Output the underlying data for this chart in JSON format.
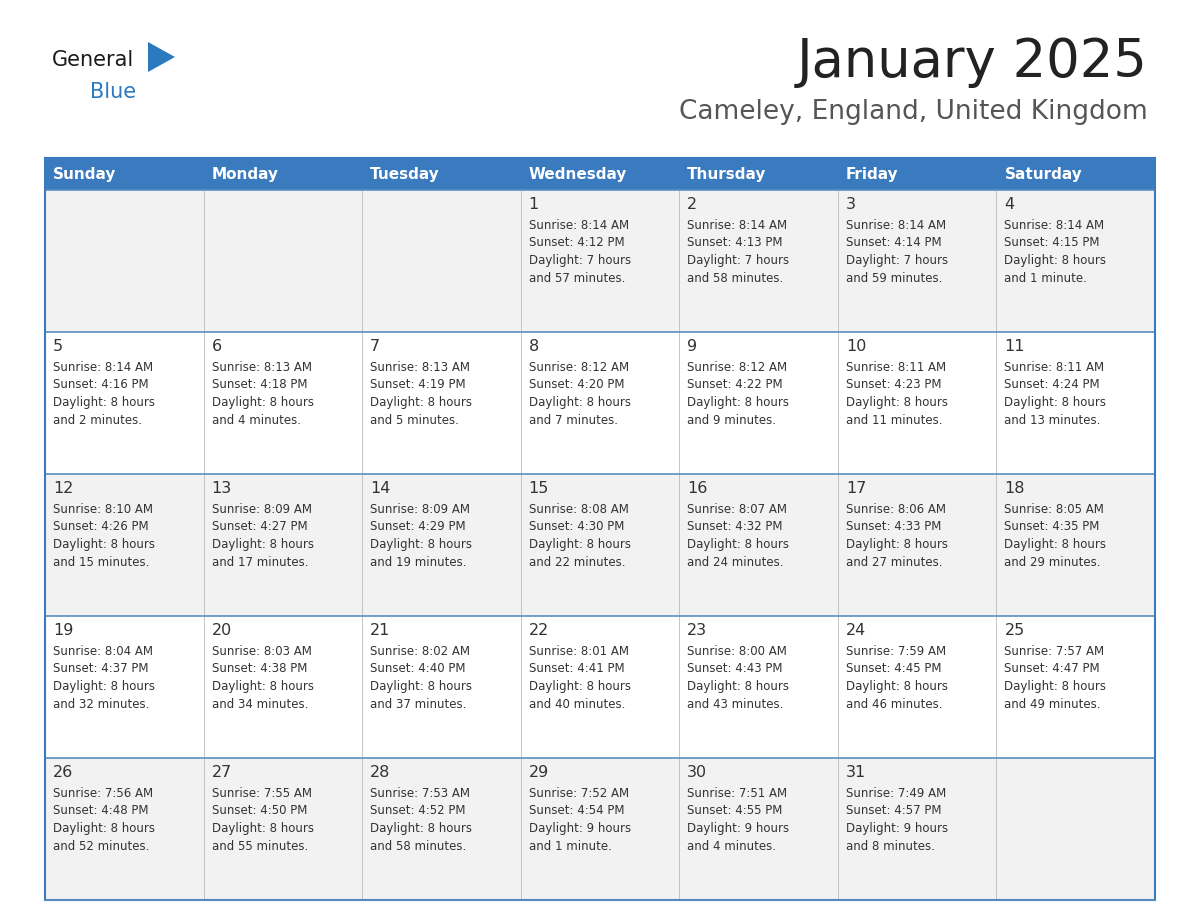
{
  "title": "January 2025",
  "subtitle": "Cameley, England, United Kingdom",
  "days_of_week": [
    "Sunday",
    "Monday",
    "Tuesday",
    "Wednesday",
    "Thursday",
    "Friday",
    "Saturday"
  ],
  "header_bg": "#3a7abf",
  "header_text": "#ffffff",
  "row_bg_even": "#f2f2f2",
  "row_bg_odd": "#ffffff",
  "cell_text": "#333333",
  "day_num_color": "#333333",
  "border_color": "#3a7abf",
  "row_border_color": "#5a8fc0",
  "title_color": "#222222",
  "subtitle_color": "#555555",
  "logo_general_color": "#1a1a1a",
  "logo_blue_color": "#2a7abf",
  "weeks": [
    [
      {
        "day": null,
        "info": ""
      },
      {
        "day": null,
        "info": ""
      },
      {
        "day": null,
        "info": ""
      },
      {
        "day": 1,
        "info": "Sunrise: 8:14 AM\nSunset: 4:12 PM\nDaylight: 7 hours\nand 57 minutes."
      },
      {
        "day": 2,
        "info": "Sunrise: 8:14 AM\nSunset: 4:13 PM\nDaylight: 7 hours\nand 58 minutes."
      },
      {
        "day": 3,
        "info": "Sunrise: 8:14 AM\nSunset: 4:14 PM\nDaylight: 7 hours\nand 59 minutes."
      },
      {
        "day": 4,
        "info": "Sunrise: 8:14 AM\nSunset: 4:15 PM\nDaylight: 8 hours\nand 1 minute."
      }
    ],
    [
      {
        "day": 5,
        "info": "Sunrise: 8:14 AM\nSunset: 4:16 PM\nDaylight: 8 hours\nand 2 minutes."
      },
      {
        "day": 6,
        "info": "Sunrise: 8:13 AM\nSunset: 4:18 PM\nDaylight: 8 hours\nand 4 minutes."
      },
      {
        "day": 7,
        "info": "Sunrise: 8:13 AM\nSunset: 4:19 PM\nDaylight: 8 hours\nand 5 minutes."
      },
      {
        "day": 8,
        "info": "Sunrise: 8:12 AM\nSunset: 4:20 PM\nDaylight: 8 hours\nand 7 minutes."
      },
      {
        "day": 9,
        "info": "Sunrise: 8:12 AM\nSunset: 4:22 PM\nDaylight: 8 hours\nand 9 minutes."
      },
      {
        "day": 10,
        "info": "Sunrise: 8:11 AM\nSunset: 4:23 PM\nDaylight: 8 hours\nand 11 minutes."
      },
      {
        "day": 11,
        "info": "Sunrise: 8:11 AM\nSunset: 4:24 PM\nDaylight: 8 hours\nand 13 minutes."
      }
    ],
    [
      {
        "day": 12,
        "info": "Sunrise: 8:10 AM\nSunset: 4:26 PM\nDaylight: 8 hours\nand 15 minutes."
      },
      {
        "day": 13,
        "info": "Sunrise: 8:09 AM\nSunset: 4:27 PM\nDaylight: 8 hours\nand 17 minutes."
      },
      {
        "day": 14,
        "info": "Sunrise: 8:09 AM\nSunset: 4:29 PM\nDaylight: 8 hours\nand 19 minutes."
      },
      {
        "day": 15,
        "info": "Sunrise: 8:08 AM\nSunset: 4:30 PM\nDaylight: 8 hours\nand 22 minutes."
      },
      {
        "day": 16,
        "info": "Sunrise: 8:07 AM\nSunset: 4:32 PM\nDaylight: 8 hours\nand 24 minutes."
      },
      {
        "day": 17,
        "info": "Sunrise: 8:06 AM\nSunset: 4:33 PM\nDaylight: 8 hours\nand 27 minutes."
      },
      {
        "day": 18,
        "info": "Sunrise: 8:05 AM\nSunset: 4:35 PM\nDaylight: 8 hours\nand 29 minutes."
      }
    ],
    [
      {
        "day": 19,
        "info": "Sunrise: 8:04 AM\nSunset: 4:37 PM\nDaylight: 8 hours\nand 32 minutes."
      },
      {
        "day": 20,
        "info": "Sunrise: 8:03 AM\nSunset: 4:38 PM\nDaylight: 8 hours\nand 34 minutes."
      },
      {
        "day": 21,
        "info": "Sunrise: 8:02 AM\nSunset: 4:40 PM\nDaylight: 8 hours\nand 37 minutes."
      },
      {
        "day": 22,
        "info": "Sunrise: 8:01 AM\nSunset: 4:41 PM\nDaylight: 8 hours\nand 40 minutes."
      },
      {
        "day": 23,
        "info": "Sunrise: 8:00 AM\nSunset: 4:43 PM\nDaylight: 8 hours\nand 43 minutes."
      },
      {
        "day": 24,
        "info": "Sunrise: 7:59 AM\nSunset: 4:45 PM\nDaylight: 8 hours\nand 46 minutes."
      },
      {
        "day": 25,
        "info": "Sunrise: 7:57 AM\nSunset: 4:47 PM\nDaylight: 8 hours\nand 49 minutes."
      }
    ],
    [
      {
        "day": 26,
        "info": "Sunrise: 7:56 AM\nSunset: 4:48 PM\nDaylight: 8 hours\nand 52 minutes."
      },
      {
        "day": 27,
        "info": "Sunrise: 7:55 AM\nSunset: 4:50 PM\nDaylight: 8 hours\nand 55 minutes."
      },
      {
        "day": 28,
        "info": "Sunrise: 7:53 AM\nSunset: 4:52 PM\nDaylight: 8 hours\nand 58 minutes."
      },
      {
        "day": 29,
        "info": "Sunrise: 7:52 AM\nSunset: 4:54 PM\nDaylight: 9 hours\nand 1 minute."
      },
      {
        "day": 30,
        "info": "Sunrise: 7:51 AM\nSunset: 4:55 PM\nDaylight: 9 hours\nand 4 minutes."
      },
      {
        "day": 31,
        "info": "Sunrise: 7:49 AM\nSunset: 4:57 PM\nDaylight: 9 hours\nand 8 minutes."
      },
      {
        "day": null,
        "info": ""
      }
    ]
  ]
}
